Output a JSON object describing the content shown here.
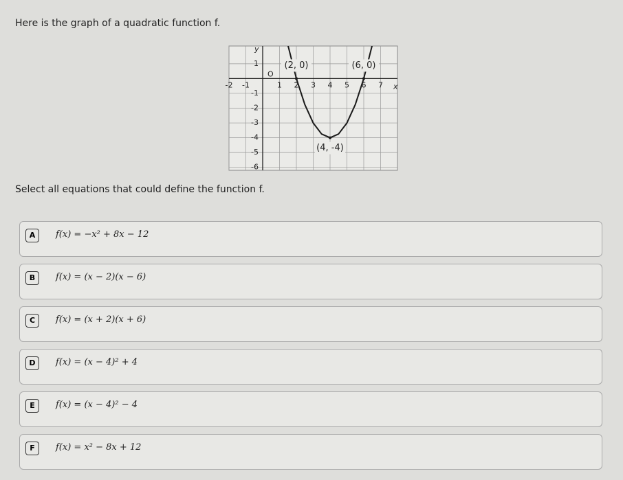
{
  "prompt": "Here is the graph of a quadratic function f.",
  "graph": {
    "x_label": "x",
    "y_label": "y",
    "origin_label": "O",
    "xlim": [
      -2,
      8
    ],
    "ylim": [
      -6.2,
      2.2
    ],
    "xticks": [
      -2,
      -1,
      1,
      2,
      3,
      4,
      5,
      6,
      7
    ],
    "yticks": [
      1,
      -1,
      -2,
      -3,
      -4,
      -5,
      -6
    ],
    "curve": {
      "x": [
        1.5,
        2,
        2.5,
        3,
        3.5,
        4,
        4.5,
        5,
        5.5,
        6,
        6.5
      ],
      "y": [
        2.25,
        0,
        -1.75,
        -3,
        -3.75,
        -4,
        -3.75,
        -3,
        -1.75,
        0,
        2.25
      ]
    },
    "points": [
      {
        "label": "(2, 0)",
        "x": 2,
        "y": 0
      },
      {
        "label": "(6, 0)",
        "x": 6,
        "y": 0
      },
      {
        "label": "(4, -4)",
        "x": 4,
        "y": -4
      }
    ]
  },
  "instruction": "Select all equations that could define the function f.",
  "options": [
    {
      "letter": "A",
      "text": "f(x) = −x² + 8x − 12"
    },
    {
      "letter": "B",
      "text": "f(x) = (x − 2)(x − 6)"
    },
    {
      "letter": "C",
      "text": "f(x) = (x + 2)(x + 6)"
    },
    {
      "letter": "D",
      "text": "f(x) = (x − 4)² + 4"
    },
    {
      "letter": "E",
      "text": "f(x) = (x − 4)² − 4"
    },
    {
      "letter": "F",
      "text": "f(x) = x² − 8x + 12"
    }
  ]
}
